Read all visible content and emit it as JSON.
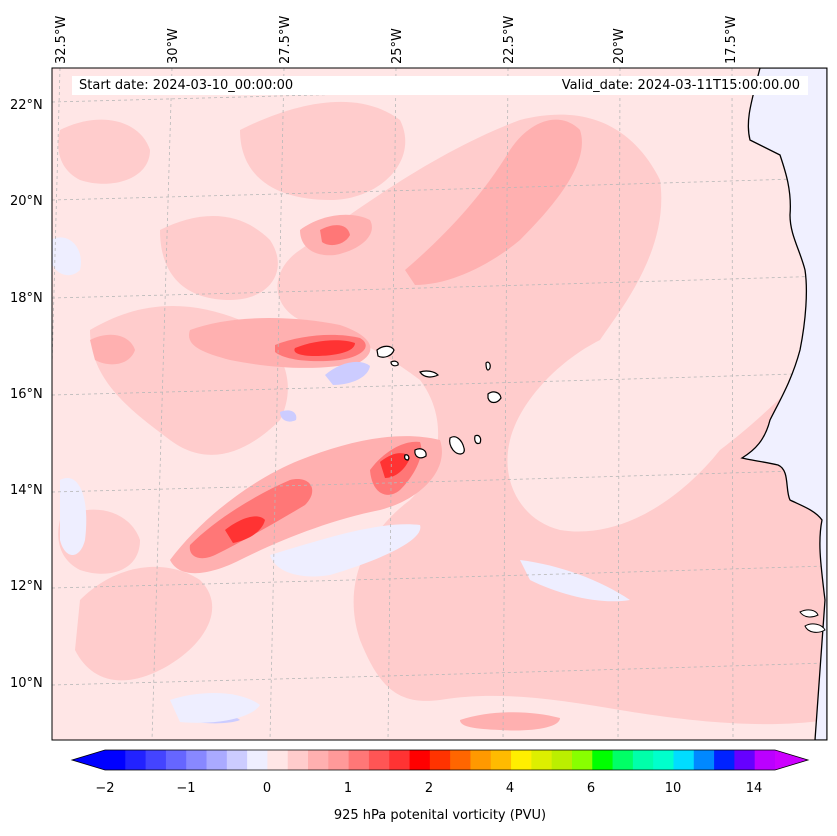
{
  "header": {
    "start_date": "Start date: 2024-03-10_00:00:00",
    "valid_date": "Valid_date: 2024-03-11T15:00:00.00"
  },
  "axes": {
    "lon_labels": [
      "32.5°W",
      "30°W",
      "27.5°W",
      "25°W",
      "22.5°W",
      "20°W",
      "17.5°W"
    ],
    "lat_labels": [
      "22°N",
      "20°N",
      "18°N",
      "16°N",
      "14°N",
      "12°N",
      "10°N"
    ]
  },
  "colorbar": {
    "label": "925 hPa potenital vorticity (PVU)",
    "ticks": [
      "−2",
      "−1",
      "0",
      "1",
      "2",
      "4",
      "6",
      "10",
      "14"
    ],
    "colors": [
      "#0000ff",
      "#2222ff",
      "#4444ff",
      "#6666ff",
      "#8888ff",
      "#aaaaff",
      "#ccccff",
      "#eeeeff",
      "#ffe6e6",
      "#ffcccc",
      "#ffb0b0",
      "#ff9999",
      "#ff7777",
      "#ff5555",
      "#ff3333",
      "#ff0000",
      "#ff3300",
      "#ff6600",
      "#ff9900",
      "#ffbb00",
      "#ffee00",
      "#ddee00",
      "#bbee00",
      "#88ff00",
      "#00ff00",
      "#00ff66",
      "#00ffaa",
      "#00ffcc",
      "#00ddff",
      "#0088ff",
      "#0022ff",
      "#6600ff",
      "#bb00ff"
    ],
    "under_color": "#0000ff",
    "over_color": "#cc00ff"
  },
  "map": {
    "background_color": "#ffe6e6",
    "land_color": "#f0f0ff"
  }
}
